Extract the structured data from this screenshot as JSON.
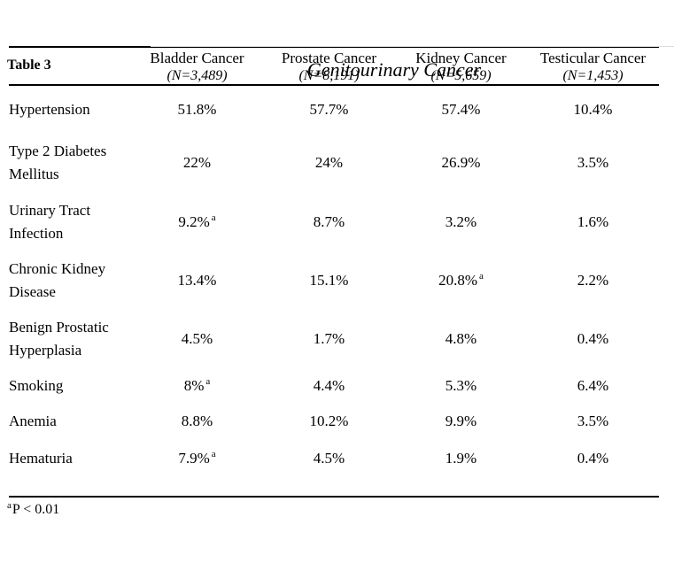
{
  "page": {
    "label": "Table 3",
    "title": "Genitourinary Cancer"
  },
  "columns": [
    {
      "name": "Bladder Cancer",
      "n_label": "(N=3,489)"
    },
    {
      "name": "Prostate Cancer",
      "n_label": "(N=8,191)"
    },
    {
      "name": "Kidney Cancer",
      "n_label": "(N=5,659)"
    },
    {
      "name": "Testicular Cancer",
      "n_label": "(N=1,453)"
    }
  ],
  "rows": [
    {
      "label": "Hypertension",
      "values": [
        {
          "text": "51.8%",
          "sup": ""
        },
        {
          "text": "57.7%",
          "sup": ""
        },
        {
          "text": "57.4%",
          "sup": ""
        },
        {
          "text": "10.4%",
          "sup": ""
        }
      ]
    },
    {
      "label": "Type 2 Diabetes\nMellitus",
      "values": [
        {
          "text": "22%",
          "sup": ""
        },
        {
          "text": "24%",
          "sup": ""
        },
        {
          "text": "26.9%",
          "sup": ""
        },
        {
          "text": "3.5%",
          "sup": ""
        }
      ]
    },
    {
      "label": "Urinary Tract\nInfection",
      "values": [
        {
          "text": "9.2%",
          "sup": "a"
        },
        {
          "text": "8.7%",
          "sup": ""
        },
        {
          "text": "3.2%",
          "sup": ""
        },
        {
          "text": "1.6%",
          "sup": ""
        }
      ]
    },
    {
      "label": "Chronic Kidney\nDisease",
      "values": [
        {
          "text": "13.4%",
          "sup": ""
        },
        {
          "text": "15.1%",
          "sup": ""
        },
        {
          "text": "20.8%",
          "sup": "a"
        },
        {
          "text": "2.2%",
          "sup": ""
        }
      ]
    },
    {
      "label": "Benign Prostatic\nHyperplasia",
      "values": [
        {
          "text": "4.5%",
          "sup": ""
        },
        {
          "text": "1.7%",
          "sup": ""
        },
        {
          "text": "4.8%",
          "sup": ""
        },
        {
          "text": "0.4%",
          "sup": ""
        }
      ]
    },
    {
      "label": "Smoking",
      "values": [
        {
          "text": "8%",
          "sup": "a"
        },
        {
          "text": "4.4%",
          "sup": ""
        },
        {
          "text": "5.3%",
          "sup": ""
        },
        {
          "text": "6.4%",
          "sup": ""
        }
      ]
    },
    {
      "label": "Anemia",
      "values": [
        {
          "text": "8.8%",
          "sup": ""
        },
        {
          "text": "10.2%",
          "sup": ""
        },
        {
          "text": "9.9%",
          "sup": ""
        },
        {
          "text": "3.5%",
          "sup": ""
        }
      ]
    },
    {
      "label": "Hematuria",
      "values": [
        {
          "text": "7.9%",
          "sup": "a"
        },
        {
          "text": "4.5%",
          "sup": ""
        },
        {
          "text": "1.9%",
          "sup": ""
        },
        {
          "text": "0.4%",
          "sup": ""
        }
      ]
    }
  ],
  "footnote": {
    "marker": "a",
    "text": "P < 0.01"
  },
  "colors": {
    "text": "#000000",
    "rule": "#000000",
    "background": "#ffffff"
  }
}
